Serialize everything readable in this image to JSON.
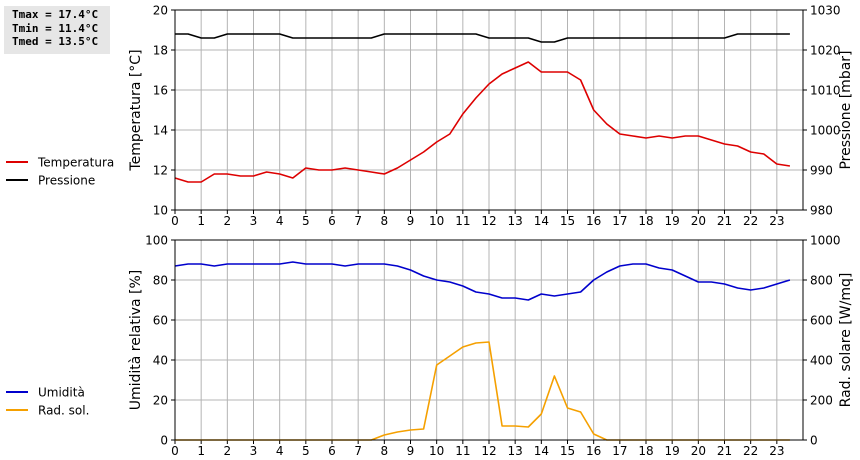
{
  "stats": {
    "tmax": "Tmax = 17.4°C",
    "tmin": "Tmin = 11.4°C",
    "tmed": "Tmed = 13.5°C"
  },
  "colors": {
    "temperature": "#dd0000",
    "pressure": "#000000",
    "humidity": "#0000cc",
    "radiation": "#f5a000",
    "grid": "#b4b4b4"
  },
  "chart_data": [
    {
      "type": "line",
      "xlim": [
        0,
        24
      ],
      "x_ticks": [
        "0",
        "1",
        "2",
        "3",
        "4",
        "5",
        "6",
        "7",
        "8",
        "9",
        "10",
        "11",
        "12",
        "13",
        "14",
        "15",
        "16",
        "17",
        "18",
        "19",
        "20",
        "21",
        "22",
        "23"
      ],
      "ylabel": "Temperatura [°C]",
      "ylim": [
        10,
        20
      ],
      "y_ticks": [
        "10",
        "12",
        "14",
        "16",
        "18",
        "20"
      ],
      "ylabel_right": "Pressione [mbar]",
      "ylim_right": [
        980,
        1030
      ],
      "y_ticks_right": [
        "980",
        "990",
        "1000",
        "1010",
        "1020",
        "1030"
      ],
      "grid": true,
      "legend_position": "left",
      "series": [
        {
          "name": "Temperatura",
          "axis": "left",
          "color": "#dd0000",
          "x": [
            0,
            0.5,
            1,
            1.5,
            2,
            2.5,
            3,
            3.5,
            4,
            4.5,
            5,
            5.5,
            6,
            6.5,
            7,
            7.5,
            8,
            8.5,
            9,
            9.5,
            10,
            10.5,
            11,
            11.5,
            12,
            12.5,
            13,
            13.5,
            14,
            14.5,
            15,
            15.5,
            16,
            16.5,
            17,
            17.5,
            18,
            18.5,
            19,
            19.5,
            20,
            20.5,
            21,
            21.5,
            22,
            22.5,
            23,
            23.5
          ],
          "y": [
            11.6,
            11.4,
            11.4,
            11.8,
            11.8,
            11.7,
            11.7,
            11.9,
            11.8,
            11.6,
            12.1,
            12.0,
            12.0,
            12.1,
            12.0,
            11.9,
            11.8,
            12.1,
            12.5,
            12.9,
            13.4,
            13.8,
            14.8,
            15.6,
            16.3,
            16.8,
            17.1,
            17.4,
            16.9,
            16.9,
            16.9,
            16.5,
            15.0,
            14.3,
            13.8,
            13.7,
            13.6,
            13.7,
            13.6,
            13.7,
            13.7,
            13.5,
            13.3,
            13.2,
            12.9,
            12.8,
            12.3,
            12.2
          ]
        },
        {
          "name": "Pressione",
          "axis": "right",
          "color": "#000000",
          "x": [
            0,
            0.5,
            1,
            1.5,
            2,
            2.5,
            3,
            3.5,
            4,
            4.5,
            5,
            5.5,
            6,
            6.5,
            7,
            7.5,
            8,
            8.5,
            9,
            9.5,
            10,
            10.5,
            11,
            11.5,
            12,
            12.5,
            13,
            13.5,
            14,
            14.5,
            15,
            15.5,
            16,
            16.5,
            17,
            17.5,
            18,
            18.5,
            19,
            19.5,
            20,
            20.5,
            21,
            21.5,
            22,
            22.5,
            23,
            23.5
          ],
          "y": [
            1024,
            1024,
            1023,
            1023,
            1024,
            1024,
            1024,
            1024,
            1024,
            1023,
            1023,
            1023,
            1023,
            1023,
            1023,
            1023,
            1024,
            1024,
            1024,
            1024,
            1024,
            1024,
            1024,
            1024,
            1023,
            1023,
            1023,
            1023,
            1022,
            1022,
            1023,
            1023,
            1023,
            1023,
            1023,
            1023,
            1023,
            1023,
            1023,
            1023,
            1023,
            1023,
            1023,
            1024,
            1024,
            1024,
            1024,
            1024
          ]
        }
      ]
    },
    {
      "type": "line",
      "xlim": [
        0,
        24
      ],
      "x_ticks": [
        "0",
        "1",
        "2",
        "3",
        "4",
        "5",
        "6",
        "7",
        "8",
        "9",
        "10",
        "11",
        "12",
        "13",
        "14",
        "15",
        "16",
        "17",
        "18",
        "19",
        "20",
        "21",
        "22",
        "23"
      ],
      "ylabel": "Umidità relativa [%]",
      "ylim": [
        0,
        100
      ],
      "y_ticks": [
        "0",
        "20",
        "40",
        "60",
        "80",
        "100"
      ],
      "ylabel_right": "Rad. solare [W/mq]",
      "ylim_right": [
        0,
        1000
      ],
      "y_ticks_right": [
        "0",
        "200",
        "400",
        "600",
        "800",
        "1000"
      ],
      "grid": true,
      "legend_position": "left",
      "series": [
        {
          "name": "Umidità",
          "axis": "left",
          "color": "#0000cc",
          "x": [
            0,
            0.5,
            1,
            1.5,
            2,
            2.5,
            3,
            3.5,
            4,
            4.5,
            5,
            5.5,
            6,
            6.5,
            7,
            7.5,
            8,
            8.5,
            9,
            9.5,
            10,
            10.5,
            11,
            11.5,
            12,
            12.5,
            13,
            13.5,
            14,
            14.5,
            15,
            15.5,
            16,
            16.5,
            17,
            17.5,
            18,
            18.5,
            19,
            19.5,
            20,
            20.5,
            21,
            21.5,
            22,
            22.5,
            23,
            23.5
          ],
          "y": [
            87,
            88,
            88,
            87,
            88,
            88,
            88,
            88,
            88,
            89,
            88,
            88,
            88,
            87,
            88,
            88,
            88,
            87,
            85,
            82,
            80,
            79,
            77,
            74,
            73,
            71,
            71,
            70,
            73,
            72,
            73,
            74,
            80,
            84,
            87,
            88,
            88,
            86,
            85,
            82,
            79,
            79,
            78,
            76,
            75,
            76,
            78,
            80
          ]
        },
        {
          "name": "Rad. sol.",
          "axis": "right",
          "color": "#f5a000",
          "x": [
            0,
            0.5,
            1,
            1.5,
            2,
            2.5,
            3,
            3.5,
            4,
            4.5,
            5,
            5.5,
            6,
            6.5,
            7,
            7.5,
            8,
            8.5,
            9,
            9.5,
            10,
            10.5,
            11,
            11.5,
            12,
            12.5,
            13,
            13.5,
            14,
            14.5,
            15,
            15.5,
            16,
            16.5,
            17,
            17.5,
            18,
            18.5,
            19,
            19.5,
            20,
            20.5,
            21,
            21.5,
            22,
            22.5,
            23,
            23.5
          ],
          "y": [
            0,
            0,
            0,
            0,
            0,
            0,
            0,
            0,
            0,
            0,
            0,
            0,
            0,
            0,
            0,
            0,
            25,
            40,
            50,
            55,
            375,
            420,
            465,
            485,
            490,
            70,
            70,
            65,
            130,
            320,
            160,
            140,
            30,
            0,
            0,
            0,
            0,
            0,
            0,
            0,
            0,
            0,
            0,
            0,
            0,
            0,
            0,
            0
          ]
        }
      ]
    }
  ]
}
